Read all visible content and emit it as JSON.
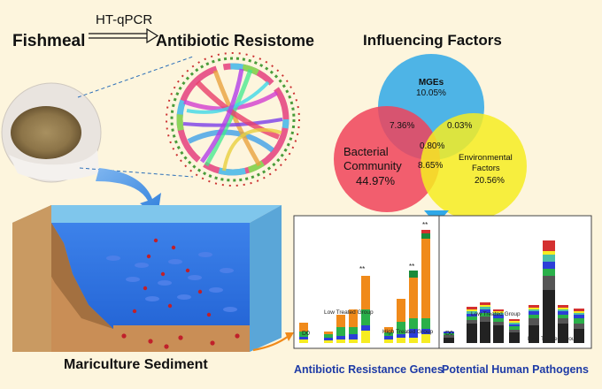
{
  "header": {
    "source": "Fishmeal",
    "method": "HT-qPCR",
    "target": "Antibiotic Resistome"
  },
  "factors": {
    "title": "Influencing Factors",
    "mge": {
      "label": "MGEs",
      "value": "10.05%"
    },
    "bacterial": {
      "label1": "Bacterial",
      "label2": "Community",
      "value": "44.97%"
    },
    "environmental": {
      "label1": "Environmental",
      "label2": "Factors",
      "value": "20.56%"
    },
    "overlap_mge_bact": "7.36%",
    "overlap_mge_env": "0.03%",
    "overlap_all": "0.80%",
    "overlap_bact_env": "8.65%"
  },
  "sediment": {
    "label": "Mariculture Sediment"
  },
  "panels": {
    "left": {
      "caption": "Antibiotic Resistance Genes",
      "groups": [
        "D0",
        "Low Treated Group",
        "High Treated Group"
      ],
      "significance": "**"
    },
    "right": {
      "caption": "Potential Human Pathogens",
      "groups": [
        "D0",
        "Low Treated Group",
        "High Treated Group"
      ]
    }
  },
  "colors": {
    "mge": "#2fa8e8",
    "bacterial": "#f0435a",
    "environmental": "#f6ec22",
    "water": "#2b6fe0",
    "sediment": "#c98e56",
    "caption": "#1d3aa6"
  }
}
